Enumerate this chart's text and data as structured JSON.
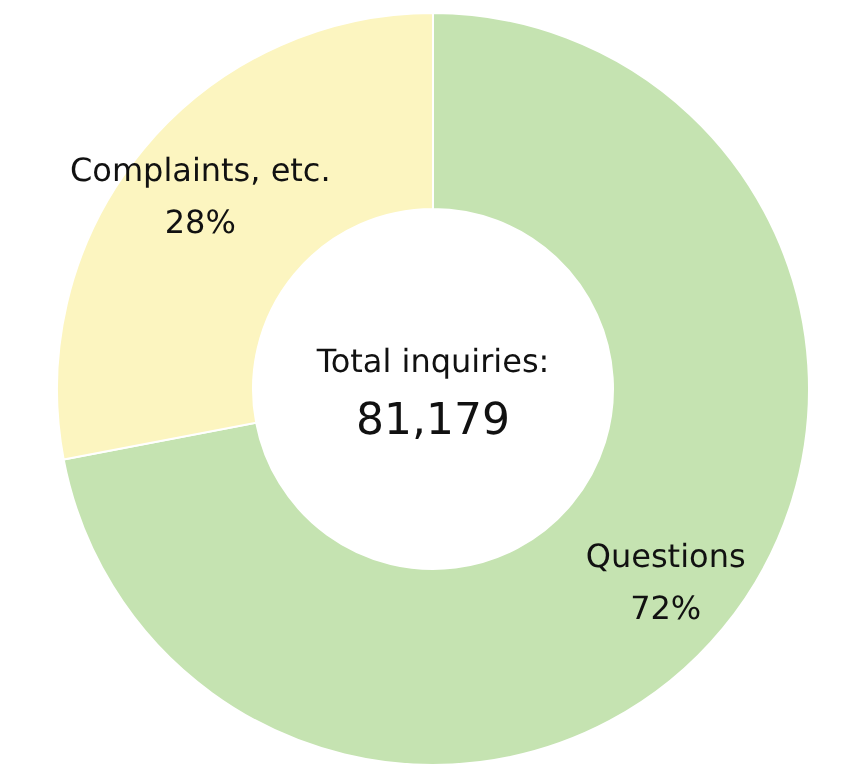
{
  "chart_data": {
    "type": "donut",
    "categories": [
      "Questions",
      "Complaints, etc."
    ],
    "values": [
      72,
      28
    ],
    "colors": [
      "#c5e3b1",
      "#fcf5c0"
    ],
    "value_labels": [
      "72%",
      "28%"
    ],
    "annotations": [
      "Total inquiries:",
      "81,179"
    ]
  }
}
